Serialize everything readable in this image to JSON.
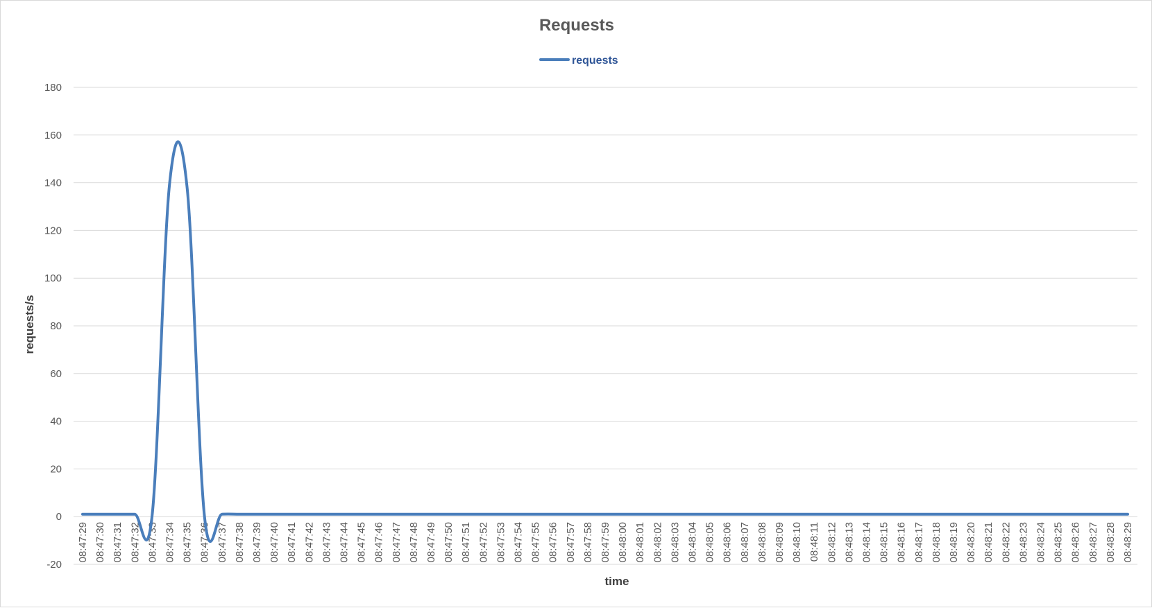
{
  "chart_data": {
    "type": "line",
    "title": "Requests",
    "xlabel": "time",
    "ylabel": "requests/s",
    "ylim": [
      -20,
      180
    ],
    "yticks": [
      -20,
      0,
      20,
      40,
      60,
      80,
      100,
      120,
      140,
      160,
      180
    ],
    "grid": true,
    "legend_position": "top",
    "colors": {
      "series": "#4a7ebb",
      "grid": "#d9d9d9",
      "text": "#595959"
    },
    "x": [
      "08:47:29",
      "08:47:30",
      "08:47:31",
      "08:47:32",
      "08:47:33",
      "08:47:34",
      "08:47:35",
      "08:47:36",
      "08:47:37",
      "08:47:38",
      "08:47:39",
      "08:47:40",
      "08:47:41",
      "08:47:42",
      "08:47:43",
      "08:47:44",
      "08:47:45",
      "08:47:46",
      "08:47:47",
      "08:47:48",
      "08:47:49",
      "08:47:50",
      "08:47:51",
      "08:47:52",
      "08:47:53",
      "08:47:54",
      "08:47:55",
      "08:47:56",
      "08:47:57",
      "08:47:58",
      "08:47:59",
      "08:48:00",
      "08:48:01",
      "08:48:02",
      "08:48:03",
      "08:48:04",
      "08:48:05",
      "08:48:06",
      "08:48:07",
      "08:48:08",
      "08:48:09",
      "08:48:10",
      "08:48:11",
      "08:48:12",
      "08:48:13",
      "08:48:14",
      "08:48:15",
      "08:48:16",
      "08:48:17",
      "08:48:18",
      "08:48:19",
      "08:48:20",
      "08:48:21",
      "08:48:22",
      "08:48:23",
      "08:48:24",
      "08:48:25",
      "08:48:26",
      "08:48:27",
      "08:48:28",
      "08:48:29"
    ],
    "series": [
      {
        "name": "requests",
        "values": [
          1,
          1,
          1,
          1,
          1,
          140,
          138,
          0,
          1,
          1,
          1,
          1,
          1,
          1,
          1,
          1,
          1,
          1,
          1,
          1,
          1,
          1,
          1,
          1,
          1,
          1,
          1,
          1,
          1,
          1,
          1,
          1,
          1,
          1,
          1,
          1,
          1,
          1,
          1,
          1,
          1,
          1,
          1,
          1,
          1,
          1,
          1,
          1,
          1,
          1,
          1,
          1,
          1,
          1,
          1,
          1,
          1,
          1,
          1,
          1,
          1
        ]
      }
    ]
  }
}
